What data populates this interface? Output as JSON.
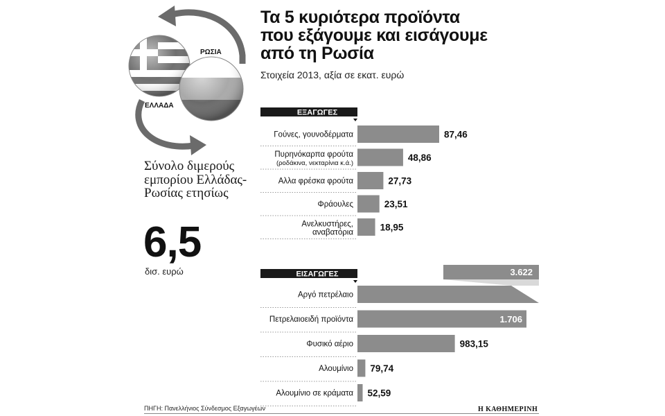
{
  "logo": {
    "greece_label": "ΕΛΛΑΔΑ",
    "russia_label": "ΡΩΣΙΑ"
  },
  "left": {
    "title": "Σύνολο διμερούς εμπορίου Ελλάδας-Ρωσίας ετησίως",
    "total": "6,5",
    "unit": "δισ. ευρώ"
  },
  "header": {
    "title_lines": [
      "Τα 5 κυριότερα προϊόντα",
      "που εξάγουμε και εισάγουμε",
      "από τη Ρωσία"
    ],
    "subtitle": "Στοιχεία 2013, αξία σε εκατ. ευρώ"
  },
  "colors": {
    "bar": "#8c8c8c",
    "header_bg": "#1a1a1a",
    "header_text": "#ffffff"
  },
  "chart_data": [
    {
      "type": "bar",
      "orientation": "horizontal",
      "section": "ΕΞΑΓΩΓΕΣ",
      "categories": [
        [
          "Γούνες, γουνοδέρματα"
        ],
        [
          "Πυρηνόκαρπα φρούτα",
          "(ροδάκινα, νεκταρίνια κ.ά.)"
        ],
        [
          "Αλλα φρέσκα φρούτα"
        ],
        [
          "Φράουλες"
        ],
        [
          "Ανελκυστήρες,",
          "αναβατόρια"
        ]
      ],
      "values": [
        87.46,
        48.86,
        27.73,
        23.51,
        18.95
      ],
      "value_labels": [
        "87,46",
        "48,86",
        "27,73",
        "23,51",
        "18,95"
      ]
    },
    {
      "type": "bar",
      "orientation": "horizontal",
      "section": "ΕΙΣΑΓΩΓΕΣ",
      "categories": [
        [
          "Αργό πετρέλαιο"
        ],
        [
          "Πετρελαιοειδή προϊόντα"
        ],
        [
          "Φυσικό αέριο"
        ],
        [
          "Αλουμίνιο"
        ],
        [
          "Αλουμίνιο σε κράματα"
        ]
      ],
      "values": [
        3622,
        1706,
        983.15,
        79.74,
        52.59
      ],
      "value_labels": [
        "3.622",
        "1.706",
        "983,15",
        "79,74",
        "52,59"
      ],
      "broken_axis_first_bar": true
    }
  ],
  "footer": {
    "source": "ΠΗΓΗ: Πανελλήνιος Σύνδεσμος Εξαγωγέων",
    "credit": "Η ΚΑΘΗΜΕΡΙΝΗ"
  }
}
